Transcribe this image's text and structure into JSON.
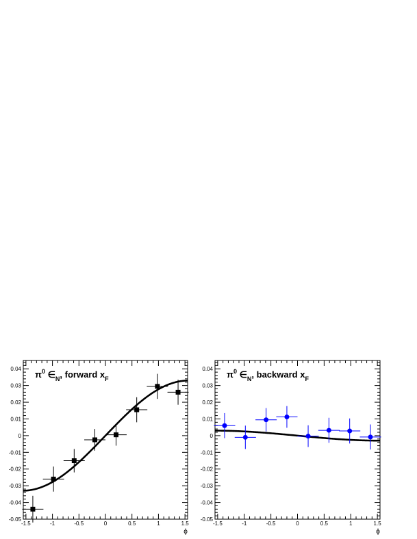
{
  "chart_data": [
    {
      "type": "scatter",
      "title_parts": [
        "π",
        "0",
        " ∈",
        "N",
        ", forward x",
        "F"
      ],
      "xlabel": "ϕ",
      "ylabel": "",
      "xlim": [
        -1.55,
        1.55
      ],
      "ylim": [
        -0.05,
        0.045
      ],
      "xticks": [
        -1.5,
        -1,
        -0.5,
        0,
        0.5,
        1,
        1.5
      ],
      "xtick_labels": [
        "-1.5",
        "-1",
        "-0.5",
        "0",
        "0.5",
        "1",
        "1.5"
      ],
      "yticks": [
        -0.05,
        -0.04,
        -0.03,
        -0.02,
        -0.01,
        0,
        0.01,
        0.02,
        0.03,
        0.04
      ],
      "ytick_labels": [
        "-0.05",
        "-0.04",
        "-0.03",
        "-0.02",
        "-0.01",
        "0",
        "0.01",
        "0.02",
        "0.03",
        "0.04"
      ],
      "marker": "square",
      "color": "#000000",
      "points": [
        {
          "x": -1.37,
          "y": -0.044,
          "xerr": 0.2,
          "yerr": 0.008
        },
        {
          "x": -0.98,
          "y": -0.026,
          "xerr": 0.2,
          "yerr": 0.0075
        },
        {
          "x": -0.59,
          "y": -0.015,
          "xerr": 0.2,
          "yerr": 0.007
        },
        {
          "x": -0.2,
          "y": -0.0025,
          "xerr": 0.2,
          "yerr": 0.0065
        },
        {
          "x": 0.2,
          "y": 0.0005,
          "xerr": 0.2,
          "yerr": 0.0065
        },
        {
          "x": 0.59,
          "y": 0.0155,
          "xerr": 0.2,
          "yerr": 0.0075
        },
        {
          "x": 0.98,
          "y": 0.0295,
          "xerr": 0.2,
          "yerr": 0.0075
        },
        {
          "x": 1.37,
          "y": 0.026,
          "xerr": 0.2,
          "yerr": 0.0075
        }
      ],
      "fit": {
        "form": "A*sin(x)",
        "A": 0.033
      }
    },
    {
      "type": "scatter",
      "title_parts": [
        "π",
        "0",
        " ∈",
        "N",
        ", backward x",
        "F"
      ],
      "xlabel": "ϕ",
      "ylabel": "",
      "xlim": [
        -1.55,
        1.55
      ],
      "ylim": [
        -0.05,
        0.045
      ],
      "xticks": [
        -1.5,
        -1,
        -0.5,
        0,
        0.5,
        1,
        1.5
      ],
      "xtick_labels": [
        "-1.5",
        "-1",
        "-0.5",
        "0",
        "0.5",
        "1",
        "1.5"
      ],
      "yticks": [
        -0.05,
        -0.04,
        -0.03,
        -0.02,
        -0.01,
        0,
        0.01,
        0.02,
        0.03,
        0.04
      ],
      "ytick_labels": [
        "-0.05",
        "-0.04",
        "-0.03",
        "-0.02",
        "-0.01",
        "0",
        "0.01",
        "0.02",
        "0.03",
        "0.04"
      ],
      "marker": "circle",
      "color": "#0000ff",
      "points": [
        {
          "x": -1.37,
          "y": 0.006,
          "xerr": 0.2,
          "yerr": 0.0075
        },
        {
          "x": -0.98,
          "y": -0.001,
          "xerr": 0.2,
          "yerr": 0.007
        },
        {
          "x": -0.59,
          "y": 0.0095,
          "xerr": 0.2,
          "yerr": 0.007
        },
        {
          "x": -0.2,
          "y": 0.0112,
          "xerr": 0.2,
          "yerr": 0.0065
        },
        {
          "x": 0.2,
          "y": -0.0003,
          "xerr": 0.2,
          "yerr": 0.0065
        },
        {
          "x": 0.59,
          "y": 0.0032,
          "xerr": 0.2,
          "yerr": 0.0075
        },
        {
          "x": 0.98,
          "y": 0.0028,
          "xerr": 0.2,
          "yerr": 0.0075
        },
        {
          "x": 1.37,
          "y": -0.0008,
          "xerr": 0.2,
          "yerr": 0.0075
        }
      ],
      "fit": {
        "form": "A*sin(x)",
        "A": -0.003
      }
    }
  ]
}
